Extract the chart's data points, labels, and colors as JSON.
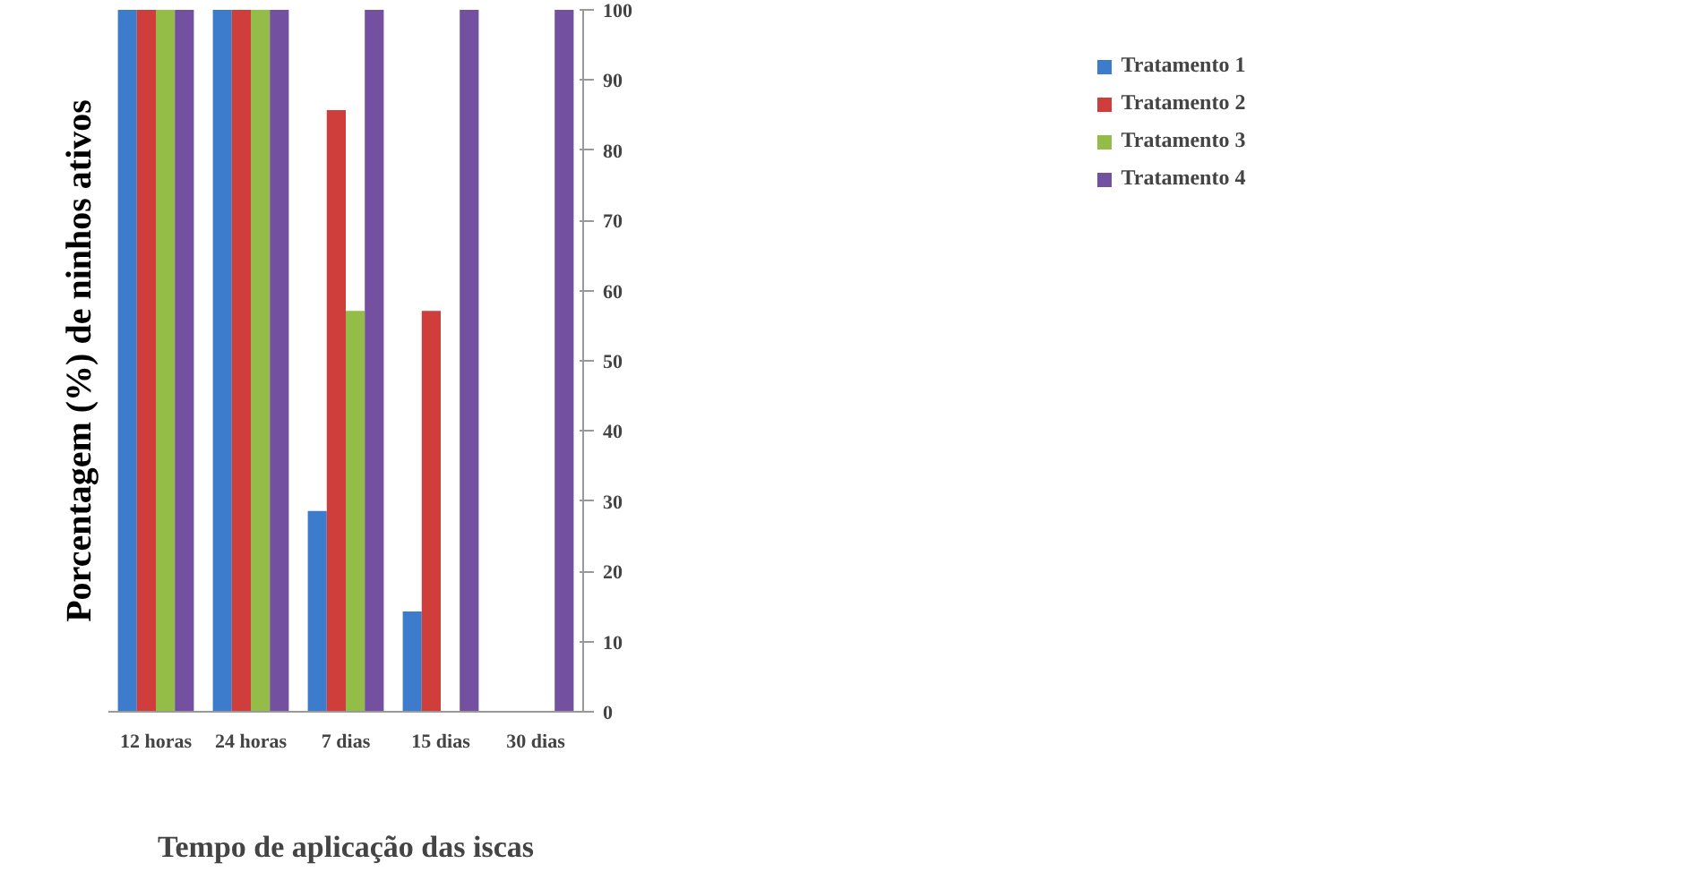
{
  "chart_data": {
    "type": "bar",
    "xlabel": "Tempo de aplicação das iscas",
    "ylabel": "Porcentagem (%) de ninhos ativos",
    "categories": [
      "12 horas",
      "24 horas",
      "7 dias",
      "15 dias",
      "30 dias"
    ],
    "series": [
      {
        "name": "Tratamento 1",
        "color": "#3d7ccc",
        "values": [
          100,
          100,
          28.6,
          14.3,
          0
        ]
      },
      {
        "name": "Tratamento 2",
        "color": "#cf3e3b",
        "values": [
          100,
          100,
          85.7,
          57.1,
          0
        ]
      },
      {
        "name": "Tratamento 3",
        "color": "#93bd47",
        "values": [
          100,
          100,
          57.1,
          0,
          0
        ]
      },
      {
        "name": "Tratamento 4",
        "color": "#7350a0",
        "values": [
          100,
          100,
          100,
          100,
          100
        ]
      }
    ],
    "ylim": [
      0,
      100
    ],
    "yticks": [
      0,
      10,
      20,
      30,
      40,
      50,
      60,
      70,
      80,
      90,
      100
    ],
    "grid": false,
    "legend": "right"
  }
}
